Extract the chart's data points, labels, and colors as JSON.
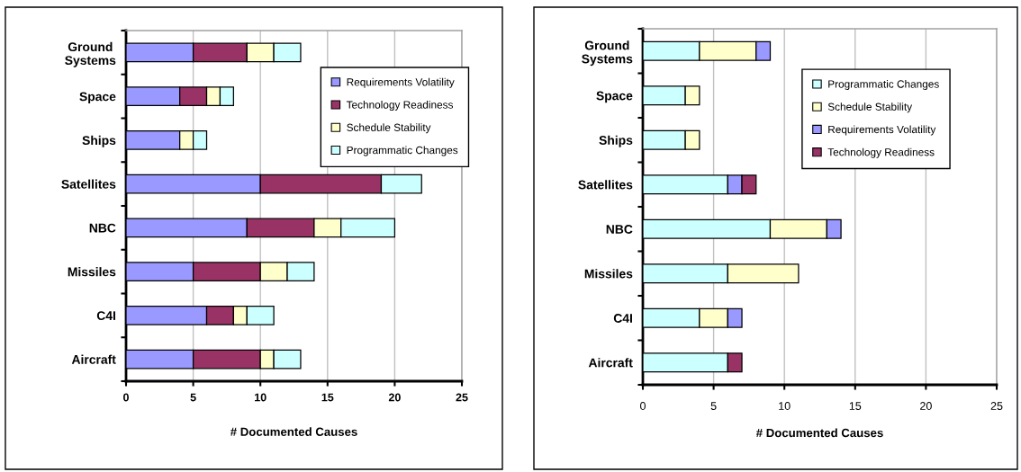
{
  "chart_data": [
    {
      "type": "bar",
      "orientation": "horizontal",
      "stacked": true,
      "categories": [
        "Ground Systems",
        "Space",
        "Ships",
        "Satellites",
        "NBC",
        "Missiles",
        "C4I",
        "Aircraft"
      ],
      "series": [
        {
          "name": "Requirements Volatility",
          "color": "#9999ff",
          "values": [
            5,
            4,
            4,
            10,
            9,
            5,
            6,
            5
          ]
        },
        {
          "name": "Technology Readiness",
          "color": "#993366",
          "values": [
            4,
            2,
            null,
            9,
            5,
            5,
            2,
            5
          ]
        },
        {
          "name": "Schedule Stability",
          "color": "#ffffcc",
          "values": [
            2,
            1,
            1,
            null,
            2,
            2,
            1,
            1
          ]
        },
        {
          "name": "Programmatic Changes",
          "color": "#ccffff",
          "values": [
            2,
            1,
            1,
            3,
            4,
            2,
            2,
            2
          ]
        }
      ],
      "xlabel": "# Documented Causes",
      "xlim": [
        0,
        25
      ],
      "xticks": [
        0,
        5,
        10,
        15,
        20,
        25
      ],
      "grid": "x",
      "legend": "top right"
    },
    {
      "type": "bar",
      "orientation": "horizontal",
      "stacked": true,
      "categories": [
        "Ground Systems",
        "Space",
        "Ships",
        "Satellites",
        "NBC",
        "Missiles",
        "C4I",
        "Aircraft"
      ],
      "series": [
        {
          "name": "Programmatic Changes",
          "color": "#ccffff",
          "values": [
            4,
            3,
            3,
            6,
            9,
            6,
            4,
            6
          ]
        },
        {
          "name": "Schedule Stability",
          "color": "#ffffcc",
          "values": [
            4,
            1,
            1,
            null,
            4,
            5,
            2,
            null
          ]
        },
        {
          "name": "Requirements Volatility",
          "color": "#9999ff",
          "values": [
            1,
            null,
            null,
            1,
            1,
            null,
            1,
            null
          ]
        },
        {
          "name": "Technology Readiness",
          "color": "#993366",
          "values": [
            null,
            null,
            null,
            1,
            null,
            null,
            null,
            1
          ]
        }
      ],
      "xlabel": "# Documented Causes",
      "xlim": [
        0,
        25
      ],
      "xticks": [
        0,
        5,
        10,
        15,
        20,
        25
      ],
      "grid": "x",
      "legend": "top right"
    }
  ]
}
